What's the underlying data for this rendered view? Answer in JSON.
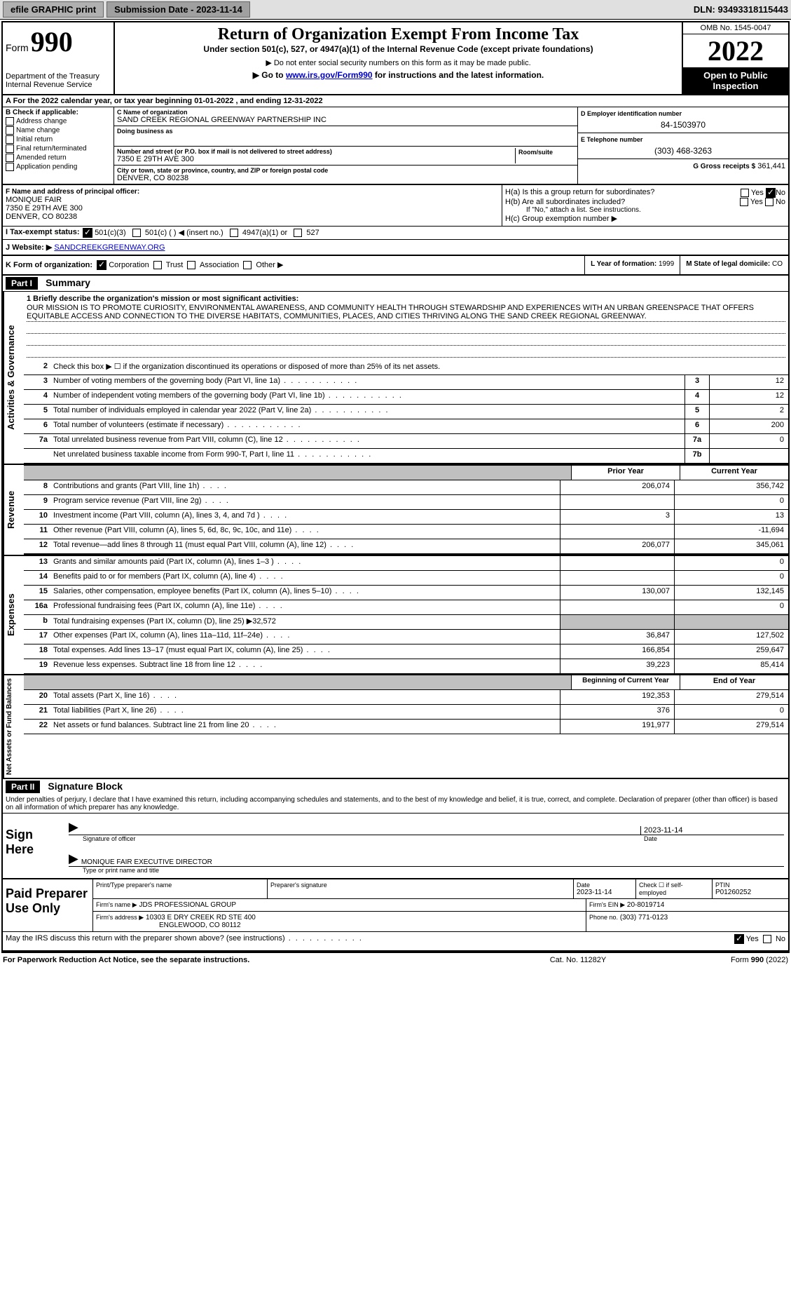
{
  "topbar": {
    "efile": "efile GRAPHIC print",
    "submission_label": "Submission Date - 2023-11-14",
    "dln_label": "DLN: 93493318115443"
  },
  "header": {
    "form_prefix": "Form",
    "form_num": "990",
    "dept": "Department of the Treasury Internal Revenue Service",
    "title": "Return of Organization Exempt From Income Tax",
    "subtitle": "Under section 501(c), 527, or 4947(a)(1) of the Internal Revenue Code (except private foundations)",
    "note1": "▶ Do not enter social security numbers on this form as it may be made public.",
    "note2_pre": "▶ Go to ",
    "note2_link": "www.irs.gov/Form990",
    "note2_post": " for instructions and the latest information.",
    "omb": "OMB No. 1545-0047",
    "year": "2022",
    "open": "Open to Public Inspection"
  },
  "row_a": "A For the 2022 calendar year, or tax year beginning 01-01-2022    , and ending 12-31-2022",
  "check_b": {
    "label": "B Check if applicable:",
    "items": [
      "Address change",
      "Name change",
      "Initial return",
      "Final return/terminated",
      "Amended return",
      "Application pending"
    ]
  },
  "org": {
    "c_label": "C Name of organization",
    "name": "SAND CREEK REGIONAL GREENWAY PARTNERSHIP INC",
    "dba_label": "Doing business as",
    "addr_label": "Number and street (or P.O. box if mail is not delivered to street address)",
    "room_label": "Room/suite",
    "street": "7350 E 29TH AVE 300",
    "city_label": "City or town, state or province, country, and ZIP or foreign postal code",
    "city": "DENVER, CO  80238"
  },
  "right": {
    "d_label": "D Employer identification number",
    "ein": "84-1503970",
    "e_label": "E Telephone number",
    "phone": "(303) 468-3263",
    "g_label": "G Gross receipts $",
    "gross": "361,441"
  },
  "f": {
    "label": "F Name and address of principal officer:",
    "name": "MONIQUE FAIR",
    "addr1": "7350 E 29TH AVE 300",
    "addr2": "DENVER, CO  80238"
  },
  "h": {
    "ha": "H(a)  Is this a group return for subordinates?",
    "hb": "H(b)  Are all subordinates included?",
    "hb_note": "If \"No,\" attach a list. See instructions.",
    "hc": "H(c)  Group exemption number ▶",
    "yes": "Yes",
    "no": "No"
  },
  "i": {
    "label": "I  Tax-exempt status:",
    "opt1": "501(c)(3)",
    "opt2": "501(c) (  ) ◀ (insert no.)",
    "opt3": "4947(a)(1) or",
    "opt4": "527"
  },
  "j": {
    "label": "J  Website: ▶",
    "val": "SANDCREEKGREENWAY.ORG"
  },
  "k": {
    "label": "K Form of organization:",
    "corp": "Corporation",
    "trust": "Trust",
    "assoc": "Association",
    "other": "Other ▶",
    "l_label": "L Year of formation:",
    "l_val": "1999",
    "m_label": "M State of legal domicile:",
    "m_val": "CO"
  },
  "part1": {
    "header": "Part I",
    "title": "Summary"
  },
  "governance": {
    "label": "Activities & Governance",
    "line1_label": "1  Briefly describe the organization's mission or most significant activities:",
    "mission": "OUR MISSION IS TO PROMOTE CURIOSITY, ENVIRONMENTAL AWARENESS, AND COMMUNITY HEALTH THROUGH STEWARDSHIP AND EXPERIENCES WITH AN URBAN GREENSPACE THAT OFFERS EQUITABLE ACCESS AND CONNECTION TO THE DIVERSE HABITATS, COMMUNITIES, PLACES, AND CITIES THRIVING ALONG THE SAND CREEK REGIONAL GREENWAY.",
    "line2": "Check this box ▶ ☐ if the organization discontinued its operations or disposed of more than 25% of its net assets.",
    "rows": [
      {
        "n": "3",
        "t": "Number of voting members of the governing body (Part VI, line 1a)",
        "c": "3",
        "v": "12"
      },
      {
        "n": "4",
        "t": "Number of independent voting members of the governing body (Part VI, line 1b)",
        "c": "4",
        "v": "12"
      },
      {
        "n": "5",
        "t": "Total number of individuals employed in calendar year 2022 (Part V, line 2a)",
        "c": "5",
        "v": "2"
      },
      {
        "n": "6",
        "t": "Total number of volunteers (estimate if necessary)",
        "c": "6",
        "v": "200"
      },
      {
        "n": "7a",
        "t": "Total unrelated business revenue from Part VIII, column (C), line 12",
        "c": "7a",
        "v": "0"
      },
      {
        "n": "",
        "t": "Net unrelated business taxable income from Form 990-T, Part I, line 11",
        "c": "7b",
        "v": ""
      }
    ]
  },
  "cols": {
    "prior": "Prior Year",
    "current": "Current Year",
    "boy": "Beginning of Current Year",
    "eoy": "End of Year"
  },
  "revenue": {
    "label": "Revenue",
    "rows": [
      {
        "n": "8",
        "t": "Contributions and grants (Part VIII, line 1h)",
        "p": "206,074",
        "c": "356,742"
      },
      {
        "n": "9",
        "t": "Program service revenue (Part VIII, line 2g)",
        "p": "",
        "c": "0"
      },
      {
        "n": "10",
        "t": "Investment income (Part VIII, column (A), lines 3, 4, and 7d )",
        "p": "3",
        "c": "13"
      },
      {
        "n": "11",
        "t": "Other revenue (Part VIII, column (A), lines 5, 6d, 8c, 9c, 10c, and 11e)",
        "p": "",
        "c": "-11,694"
      },
      {
        "n": "12",
        "t": "Total revenue—add lines 8 through 11 (must equal Part VIII, column (A), line 12)",
        "p": "206,077",
        "c": "345,061"
      }
    ]
  },
  "expenses": {
    "label": "Expenses",
    "rows": [
      {
        "n": "13",
        "t": "Grants and similar amounts paid (Part IX, column (A), lines 1–3 )",
        "p": "",
        "c": "0"
      },
      {
        "n": "14",
        "t": "Benefits paid to or for members (Part IX, column (A), line 4)",
        "p": "",
        "c": "0"
      },
      {
        "n": "15",
        "t": "Salaries, other compensation, employee benefits (Part IX, column (A), lines 5–10)",
        "p": "130,007",
        "c": "132,145"
      },
      {
        "n": "16a",
        "t": "Professional fundraising fees (Part IX, column (A), line 11e)",
        "p": "",
        "c": "0"
      },
      {
        "n": "b",
        "t": "Total fundraising expenses (Part IX, column (D), line 25) ▶32,572",
        "p": "",
        "c": "",
        "grey": true
      },
      {
        "n": "17",
        "t": "Other expenses (Part IX, column (A), lines 11a–11d, 11f–24e)",
        "p": "36,847",
        "c": "127,502"
      },
      {
        "n": "18",
        "t": "Total expenses. Add lines 13–17 (must equal Part IX, column (A), line 25)",
        "p": "166,854",
        "c": "259,647"
      },
      {
        "n": "19",
        "t": "Revenue less expenses. Subtract line 18 from line 12",
        "p": "39,223",
        "c": "85,414"
      }
    ]
  },
  "netassets": {
    "label": "Net Assets or Fund Balances",
    "rows": [
      {
        "n": "20",
        "t": "Total assets (Part X, line 16)",
        "p": "192,353",
        "c": "279,514"
      },
      {
        "n": "21",
        "t": "Total liabilities (Part X, line 26)",
        "p": "376",
        "c": "0"
      },
      {
        "n": "22",
        "t": "Net assets or fund balances. Subtract line 21 from line 20",
        "p": "191,977",
        "c": "279,514"
      }
    ]
  },
  "part2": {
    "header": "Part II",
    "title": "Signature Block",
    "penalty": "Under penalties of perjury, I declare that I have examined this return, including accompanying schedules and statements, and to the best of my knowledge and belief, it is true, correct, and complete. Declaration of preparer (other than officer) is based on all information of which preparer has any knowledge."
  },
  "sign": {
    "here": "Sign Here",
    "sig_date": "2023-11-14",
    "sig_label": "Signature of officer",
    "date_label": "Date",
    "name": "MONIQUE FAIR  EXECUTIVE DIRECTOR",
    "name_label": "Type or print name and title"
  },
  "paid": {
    "label": "Paid Preparer Use Only",
    "h1": "Print/Type preparer's name",
    "h2": "Preparer's signature",
    "h3": "Date",
    "date": "2023-11-14",
    "h4": "Check ☐ if self-employed",
    "h5": "PTIN",
    "ptin": "P01260252",
    "firm_label": "Firm's name    ▶",
    "firm": "JDS PROFESSIONAL GROUP",
    "ein_label": "Firm's EIN ▶",
    "firm_ein": "20-8019714",
    "addr_label": "Firm's address ▶",
    "addr1": "10303 E DRY CREEK RD STE 400",
    "addr2": "ENGLEWOOD, CO  80112",
    "phone_label": "Phone no.",
    "phone": "(303) 771-0123"
  },
  "discuss": {
    "text": "May the IRS discuss this return with the preparer shown above? (see instructions)",
    "yes": "Yes",
    "no": "No"
  },
  "footer": {
    "left": "For Paperwork Reduction Act Notice, see the separate instructions.",
    "mid": "Cat. No. 11282Y",
    "right": "Form 990 (2022)"
  }
}
